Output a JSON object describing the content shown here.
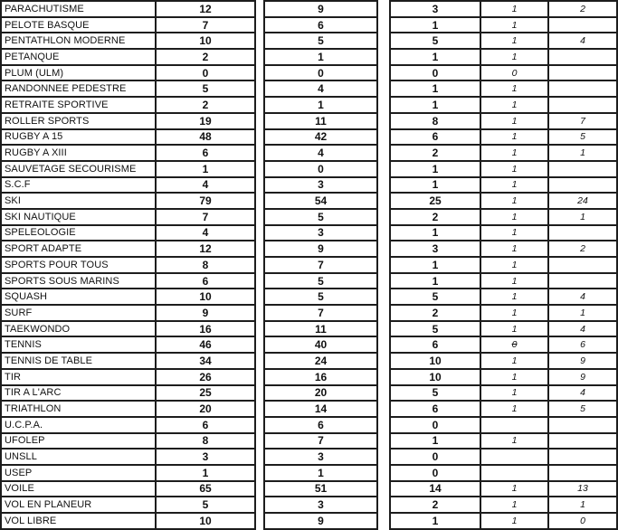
{
  "colors": {
    "grid": "#1d1d1d",
    "text": "#111111",
    "background": "#ffffff"
  },
  "table": {
    "rows": [
      {
        "name": "PARACHUTISME",
        "c1": "12",
        "c2": "9",
        "c3": "3",
        "c4": "1",
        "c5": "2"
      },
      {
        "name": "PELOTE BASQUE",
        "c1": "7",
        "c2": "6",
        "c3": "1",
        "c4": "1",
        "c5": ""
      },
      {
        "name": "PENTATHLON MODERNE",
        "c1": "10",
        "c2": "5",
        "c3": "5",
        "c4": "1",
        "c5": "4"
      },
      {
        "name": "PETANQUE",
        "c1": "2",
        "c2": "1",
        "c3": "1",
        "c4": "1",
        "c5": ""
      },
      {
        "name": "PLUM (ULM)",
        "c1": "0",
        "c2": "0",
        "c3": "0",
        "c4": "0",
        "c5": ""
      },
      {
        "name": "RANDONNEE PEDESTRE",
        "c1": "5",
        "c2": "4",
        "c3": "1",
        "c4": "1",
        "c5": ""
      },
      {
        "name": "RETRAITE SPORTIVE",
        "c1": "2",
        "c2": "1",
        "c3": "1",
        "c4": "1",
        "c5": ""
      },
      {
        "name": "ROLLER SPORTS",
        "c1": "19",
        "c2": "11",
        "c3": "8",
        "c4": "1",
        "c5": "7"
      },
      {
        "name": "RUGBY A 15",
        "c1": "48",
        "c2": "42",
        "c3": "6",
        "c4": "1",
        "c5": "5"
      },
      {
        "name": "RUGBY A XIII",
        "c1": "6",
        "c2": "4",
        "c3": "2",
        "c4": "1",
        "c5": "1"
      },
      {
        "name": "SAUVETAGE SECOURISME",
        "c1": "1",
        "c2": "0",
        "c3": "1",
        "c4": "1",
        "c5": ""
      },
      {
        "name": "S.C.F",
        "c1": "4",
        "c2": "3",
        "c3": "1",
        "c4": "1",
        "c5": ""
      },
      {
        "name": "SKI",
        "c1": "79",
        "c2": "54",
        "c3": "25",
        "c4": "1",
        "c5": "24"
      },
      {
        "name": "SKI NAUTIQUE",
        "c1": "7",
        "c2": "5",
        "c3": "2",
        "c4": "1",
        "c5": "1"
      },
      {
        "name": "SPELEOLOGIE",
        "c1": "4",
        "c2": "3",
        "c3": "1",
        "c4": "1",
        "c5": ""
      },
      {
        "name": "SPORT ADAPTE",
        "c1": "12",
        "c2": "9",
        "c3": "3",
        "c4": "1",
        "c5": "2"
      },
      {
        "name": "SPORTS POUR TOUS",
        "c1": "8",
        "c2": "7",
        "c3": "1",
        "c4": "1",
        "c5": ""
      },
      {
        "name": "SPORTS SOUS MARINS",
        "c1": "6",
        "c2": "5",
        "c3": "1",
        "c4": "1",
        "c5": ""
      },
      {
        "name": "SQUASH",
        "c1": "10",
        "c2": "5",
        "c3": "5",
        "c4": "1",
        "c5": "4"
      },
      {
        "name": "SURF",
        "c1": "9",
        "c2": "7",
        "c3": "2",
        "c4": "1",
        "c5": "1"
      },
      {
        "name": "TAEKWONDO",
        "c1": "16",
        "c2": "11",
        "c3": "5",
        "c4": "1",
        "c5": "4"
      },
      {
        "name": "TENNIS",
        "c1": "46",
        "c2": "40",
        "c3": "6",
        "c4": {
          "v": "0",
          "strike": true
        },
        "c5": "6"
      },
      {
        "name": "TENNIS DE TABLE",
        "c1": "34",
        "c2": "24",
        "c3": "10",
        "c4": "1",
        "c5": "9"
      },
      {
        "name": "TIR",
        "c1": "26",
        "c2": "16",
        "c3": "10",
        "c4": "1",
        "c5": "9"
      },
      {
        "name": "TIR A L'ARC",
        "c1": "25",
        "c2": "20",
        "c3": "5",
        "c4": "1",
        "c5": "4"
      },
      {
        "name": "TRIATHLON",
        "c1": "20",
        "c2": "14",
        "c3": "6",
        "c4": "1",
        "c5": "5"
      },
      {
        "name": "U.C.P.A.",
        "c1": "6",
        "c2": "6",
        "c3": "0",
        "c4": "",
        "c5": ""
      },
      {
        "name": "UFOLEP",
        "c1": "8",
        "c2": "7",
        "c3": "1",
        "c4": "1",
        "c5": ""
      },
      {
        "name": "UNSLL",
        "c1": "3",
        "c2": "3",
        "c3": "0",
        "c4": "",
        "c5": ""
      },
      {
        "name": "USEP",
        "c1": "1",
        "c2": "1",
        "c3": "0",
        "c4": "",
        "c5": ""
      },
      {
        "name": "VOILE",
        "c1": "65",
        "c2": "51",
        "c3": "14",
        "c4": "1",
        "c5": "13"
      },
      {
        "name": "VOL EN PLANEUR",
        "c1": "5",
        "c2": "3",
        "c3": "2",
        "c4": "1",
        "c5": "1"
      },
      {
        "name": "VOL LIBRE",
        "c1": "10",
        "c2": "9",
        "c3": "1",
        "c4": "1",
        "c5": "0"
      }
    ]
  }
}
